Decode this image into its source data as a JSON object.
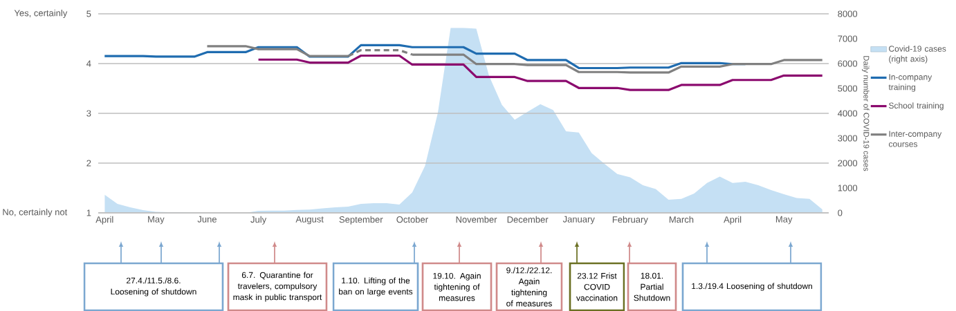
{
  "chart_data": {
    "type": "line",
    "categories": [
      "April",
      null,
      null,
      null,
      "May",
      null,
      null,
      null,
      "June",
      null,
      null,
      null,
      "July",
      null,
      null,
      null,
      "August",
      null,
      null,
      null,
      "September",
      null,
      null,
      null,
      "October",
      null,
      null,
      null,
      null,
      "November",
      null,
      null,
      null,
      "December",
      null,
      null,
      null,
      "January",
      null,
      null,
      null,
      "February",
      null,
      null,
      null,
      "March",
      null,
      null,
      null,
      "April",
      null,
      null,
      null,
      "May",
      null,
      null,
      null
    ],
    "series": [
      {
        "name": "Covid-19 cases (right axis)",
        "type": "area",
        "axis": "y2",
        "color": "#c5e0f4",
        "values": [
          730,
          360,
          220,
          110,
          40,
          30,
          20,
          10,
          0,
          0,
          0,
          0,
          80,
          90,
          90,
          120,
          130,
          180,
          220,
          250,
          360,
          390,
          390,
          330,
          820,
          1890,
          4020,
          7440,
          7440,
          7400,
          5500,
          4340,
          3740,
          4060,
          4370,
          4130,
          3280,
          3230,
          2400,
          1970,
          1560,
          1430,
          1110,
          960,
          530,
          560,
          780,
          1200,
          1460,
          1200,
          1250,
          1110,
          920,
          750,
          600,
          560,
          140
        ]
      },
      {
        "name": "In-company training",
        "color": "#1f6cb0",
        "values": [
          4.15,
          4.15,
          4.15,
          4.15,
          4.14,
          4.14,
          4.14,
          4.14,
          4.23,
          4.23,
          4.23,
          4.23,
          4.33,
          4.33,
          4.33,
          4.33,
          4.14,
          4.14,
          4.14,
          4.14,
          4.37,
          4.37,
          4.37,
          4.37,
          4.33,
          4.33,
          4.33,
          4.33,
          4.33,
          4.2,
          4.2,
          4.2,
          4.2,
          4.07,
          4.07,
          4.07,
          4.07,
          3.91,
          3.91,
          3.91,
          3.91,
          3.92,
          3.92,
          3.92,
          3.92,
          4.01,
          4.01,
          4.01,
          4.01,
          3.99,
          3.99,
          null,
          null,
          null,
          null,
          null,
          null
        ]
      },
      {
        "name": "School training",
        "color": "#8b0a6e",
        "values": [
          null,
          null,
          null,
          null,
          null,
          null,
          null,
          null,
          null,
          null,
          null,
          null,
          4.08,
          4.08,
          4.08,
          4.08,
          4.02,
          4.02,
          4.02,
          4.02,
          4.16,
          4.16,
          4.16,
          4.16,
          3.98,
          3.98,
          3.98,
          3.98,
          3.98,
          3.73,
          3.73,
          3.73,
          3.73,
          3.65,
          3.65,
          3.65,
          3.65,
          3.51,
          3.51,
          3.51,
          3.51,
          3.47,
          3.47,
          3.47,
          3.47,
          3.57,
          3.57,
          3.57,
          3.57,
          3.67,
          3.67,
          3.67,
          3.67,
          3.76,
          3.76,
          3.76,
          3.76
        ]
      },
      {
        "name": "Inter-company courses",
        "color": "#808080",
        "values": [
          null,
          null,
          null,
          null,
          null,
          null,
          null,
          null,
          4.35,
          4.35,
          4.35,
          4.35,
          4.29,
          4.29,
          4.29,
          4.29,
          4.15,
          4.15,
          4.15,
          4.15,
          null,
          null,
          null,
          null,
          4.18,
          4.18,
          4.18,
          4.18,
          4.18,
          3.99,
          3.99,
          3.99,
          3.99,
          3.97,
          3.97,
          3.97,
          3.97,
          3.83,
          3.83,
          3.83,
          3.83,
          3.82,
          3.82,
          3.82,
          3.82,
          3.94,
          3.94,
          3.94,
          3.94,
          3.99,
          3.99,
          3.99,
          3.99,
          4.07,
          4.07,
          4.07,
          4.07
        ]
      },
      {
        "color": "#7f7f7f",
        "line_style": "dashed",
        "values": [
          null,
          null,
          null,
          null,
          null,
          null,
          null,
          null,
          null,
          null,
          null,
          null,
          null,
          null,
          null,
          null,
          null,
          null,
          null,
          4.15,
          4.27,
          4.27,
          4.27,
          4.27,
          4.18,
          null,
          null,
          null,
          null,
          null,
          null,
          null,
          null,
          null,
          null,
          null,
          null,
          null,
          null,
          null,
          null,
          null,
          null,
          null,
          null,
          null,
          null,
          null,
          null,
          null,
          null,
          null,
          null,
          null,
          null,
          null,
          null
        ]
      }
    ],
    "ylim": [
      1,
      5
    ],
    "yticks": [
      1,
      2,
      3,
      4,
      5
    ],
    "y2lim": [
      0,
      8000
    ],
    "y2ticks": [
      0,
      1000,
      2000,
      3000,
      4000,
      5000,
      6000,
      7000,
      8000
    ],
    "y2label": "Daily number of COVID-19 cases",
    "grid": "y",
    "legend": "right",
    "annotations": [
      "Yes, certainly",
      "No, certainly not",
      "27.4./11.5./8.6. Loosening of shutdown",
      "6.7. Quarantine for travelers, compulsory mask in public transport",
      "1.10. Lifting of the ban on large events",
      "19.10. Again tightening of measures",
      "9./12./22.12. Again tightening of measures",
      "23.12 Frist COVID vaccination",
      "18.01. Partial Shutdown",
      "1.3./19.4 Loosening of shutdown"
    ]
  }
}
